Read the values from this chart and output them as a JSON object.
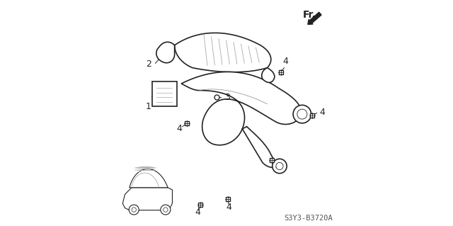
{
  "background_color": "#ffffff",
  "diagram_code": "S3Y3-B3720A",
  "fr_label": "Fr.",
  "line_color": "#222222",
  "label_fontsize": 9,
  "diagram_fontsize": 7.5,
  "fr_fontsize": 10
}
